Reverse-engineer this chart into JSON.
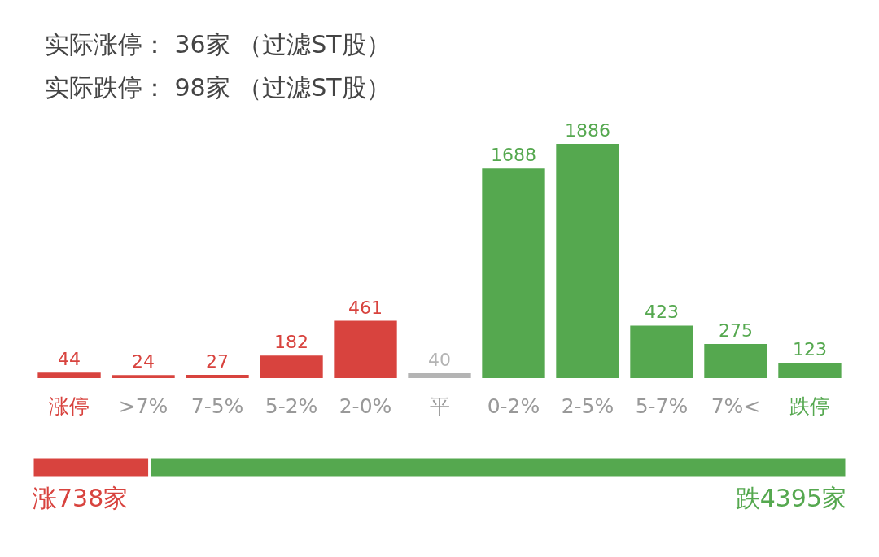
{
  "chart_data": [
    {
      "type": "bar",
      "annotations": [
        "实际涨停： 36家 （过滤ST股）",
        "实际跌停： 98家 （过滤ST股）"
      ],
      "categories": [
        "涨停",
        ">7%",
        "7-5%",
        "5-2%",
        "2-0%",
        "平",
        "0-2%",
        "2-5%",
        "5-7%",
        "7%<",
        "跌停"
      ],
      "values": [
        44,
        24,
        27,
        182,
        461,
        40,
        1688,
        1886,
        423,
        275,
        123
      ],
      "colors": [
        "#d8433e",
        "#d8433e",
        "#d8433e",
        "#d8433e",
        "#d8433e",
        "#b4b4b4",
        "#55a84f",
        "#55a84f",
        "#55a84f",
        "#55a84f",
        "#55a84f"
      ],
      "data_labels": true
    },
    {
      "type": "bar",
      "orientation": "horizontal",
      "stacked": true,
      "categories": [
        null
      ],
      "series": [
        {
          "color": "#d8433e",
          "values": [
            738
          ],
          "value_labels": [
            "涨738家"
          ]
        },
        {
          "color": "#55a84f",
          "values": [
            4395
          ],
          "value_labels": [
            "跌4395家"
          ]
        }
      ]
    }
  ]
}
